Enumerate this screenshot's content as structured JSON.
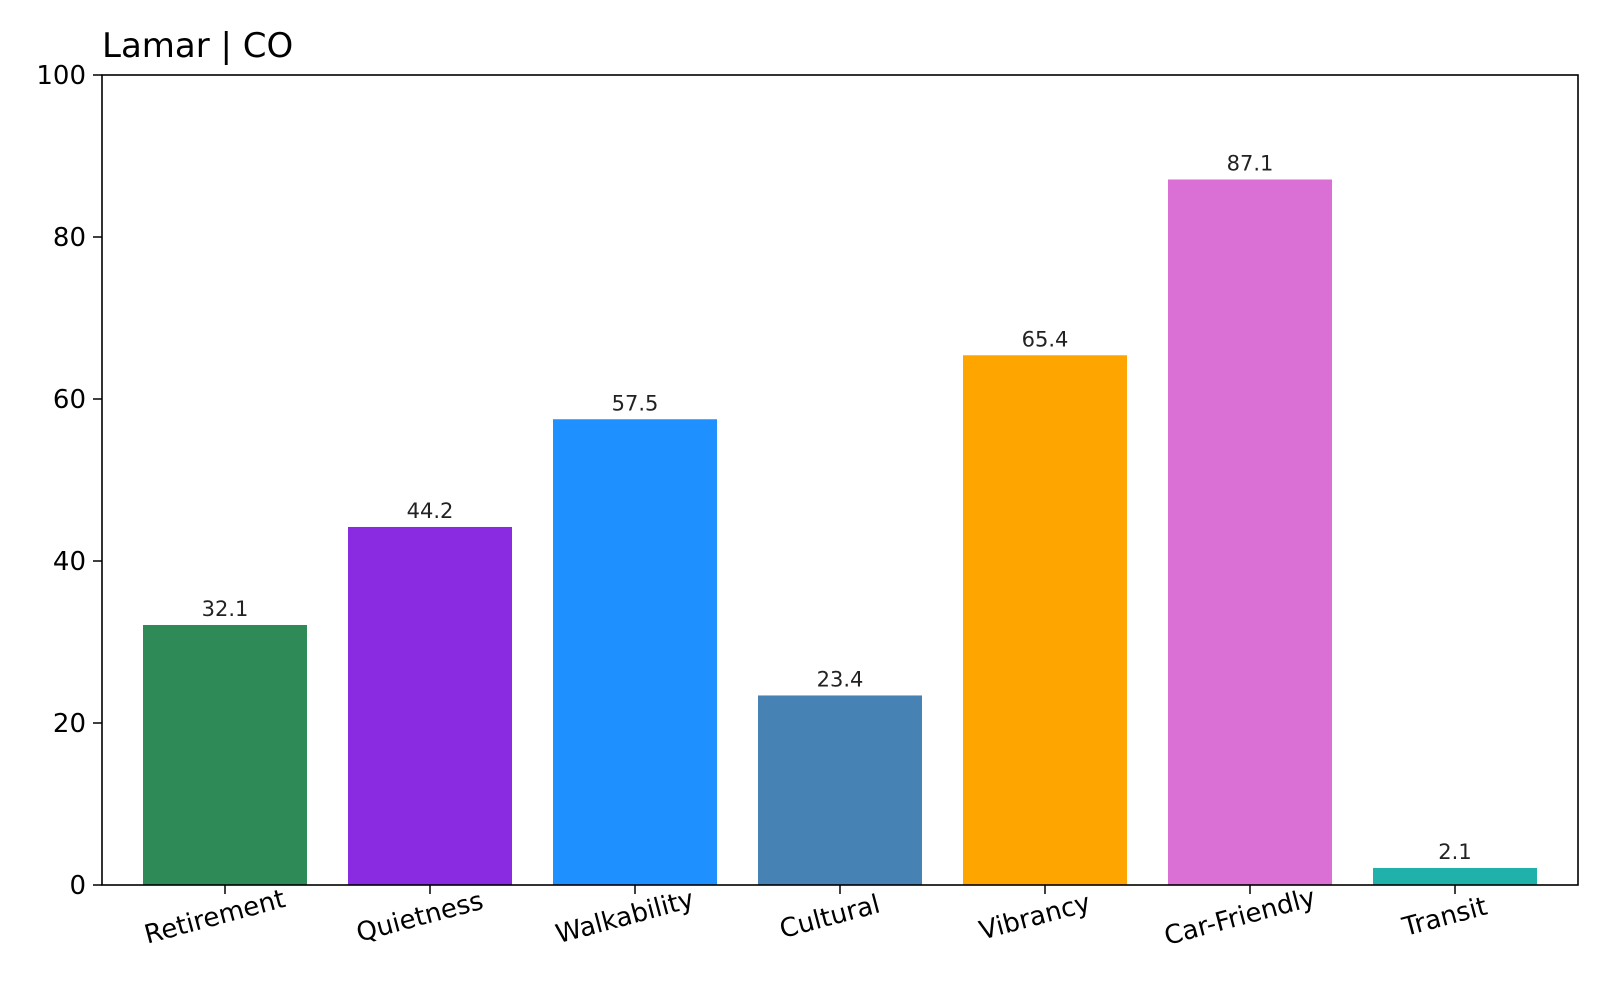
{
  "chart_data": {
    "type": "bar",
    "title": "Lamar | CO",
    "xlabel": "",
    "ylabel": "",
    "categories": [
      "Retirement",
      "Quietness",
      "Walkability",
      "Cultural",
      "Vibrancy",
      "Car-Friendly",
      "Transit"
    ],
    "values": [
      32.1,
      44.2,
      57.5,
      23.4,
      65.4,
      87.1,
      2.1
    ],
    "value_labels": [
      "32.1",
      "44.2",
      "57.5",
      "23.4",
      "65.4",
      "87.1",
      "2.1"
    ],
    "colors": [
      "#2e8b57",
      "#8a2be2",
      "#1e90ff",
      "#4682b4",
      "#ffa500",
      "#da70d6",
      "#20b2aa"
    ],
    "ylim": [
      0,
      100
    ],
    "yticks": [
      0,
      20,
      40,
      60,
      80,
      100
    ],
    "ytick_labels": [
      "0",
      "20",
      "40",
      "60",
      "80",
      "100"
    ],
    "grid": false,
    "legend": "none",
    "xtick_rotation": "slanted"
  }
}
